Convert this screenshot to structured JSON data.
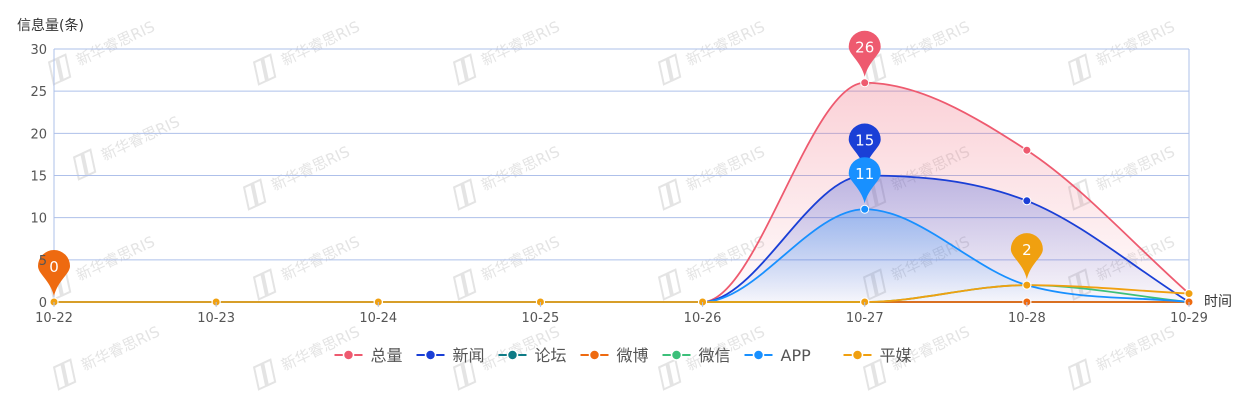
{
  "chart_data": {
    "type": "line",
    "ylabel": "信息量(条)",
    "xlabel": "时间",
    "categories": [
      "10-22",
      "10-23",
      "10-24",
      "10-25",
      "10-26",
      "10-27",
      "10-28",
      "10-29"
    ],
    "ylim": [
      0,
      30
    ],
    "yticks": [
      0,
      5,
      10,
      15,
      20,
      25,
      30
    ],
    "grid": true,
    "legend_position": "bottom",
    "series": [
      {
        "name": "总量",
        "color": "#ee5a6f",
        "area": true,
        "values": [
          0,
          0,
          0,
          0,
          0,
          26,
          18,
          1
        ]
      },
      {
        "name": "新闻",
        "color": "#1a3fd6",
        "area": true,
        "values": [
          0,
          0,
          0,
          0,
          0,
          15,
          12,
          0
        ]
      },
      {
        "name": "论坛",
        "color": "#0e7b86",
        "area": false,
        "values": [
          0,
          0,
          0,
          0,
          0,
          0,
          0,
          0
        ]
      },
      {
        "name": "微博",
        "color": "#ee6a10",
        "area": false,
        "values": [
          0,
          0,
          0,
          0,
          0,
          0,
          0,
          0
        ]
      },
      {
        "name": "微信",
        "color": "#3cc07a",
        "area": false,
        "values": [
          0,
          0,
          0,
          0,
          0,
          0,
          2,
          0
        ]
      },
      {
        "name": "APP",
        "color": "#1890ff",
        "area": true,
        "values": [
          0,
          0,
          0,
          0,
          0,
          11,
          2,
          0
        ]
      },
      {
        "name": "平媒",
        "color": "#f0a010",
        "area": false,
        "values": [
          0,
          0,
          0,
          0,
          0,
          0,
          2,
          1
        ]
      }
    ],
    "max_markers": [
      {
        "series": "总量",
        "category": "10-27",
        "value": 26
      },
      {
        "series": "新闻",
        "category": "10-27",
        "value": 15
      },
      {
        "series": "APP",
        "category": "10-27",
        "value": 11
      },
      {
        "series": "平媒",
        "category": "10-28",
        "value": 2
      },
      {
        "series": "微博",
        "category": "10-22",
        "value": 0
      }
    ]
  },
  "watermark": {
    "text": "新华睿思RIS",
    "color": "#e4e4e4"
  },
  "colors": {
    "axis": "#aec0ea",
    "grid": "#aec0ea",
    "axis_text": "#555555"
  }
}
